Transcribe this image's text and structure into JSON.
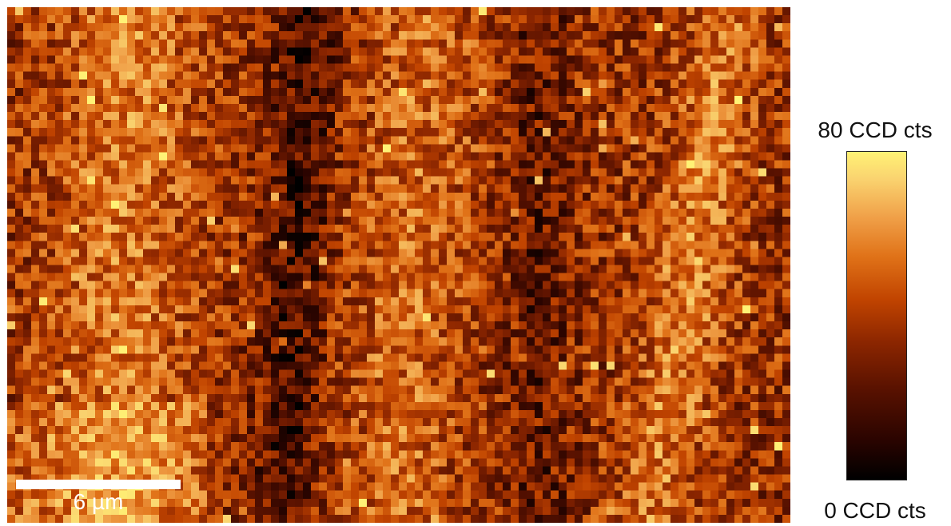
{
  "image": {
    "description_kind": "false-color intensity map",
    "colormap": "afmhot",
    "colormap_stops": [
      "#000000",
      "#2a0400",
      "#5a1200",
      "#8c2600",
      "#c14400",
      "#e07218",
      "#f0a048",
      "#fad470",
      "#fff275"
    ]
  },
  "scale_bar": {
    "label": "6 µm",
    "color": "#ffffff"
  },
  "colorbar": {
    "max_label": "80 CCD cts",
    "min_label": "0 CCD cts"
  }
}
